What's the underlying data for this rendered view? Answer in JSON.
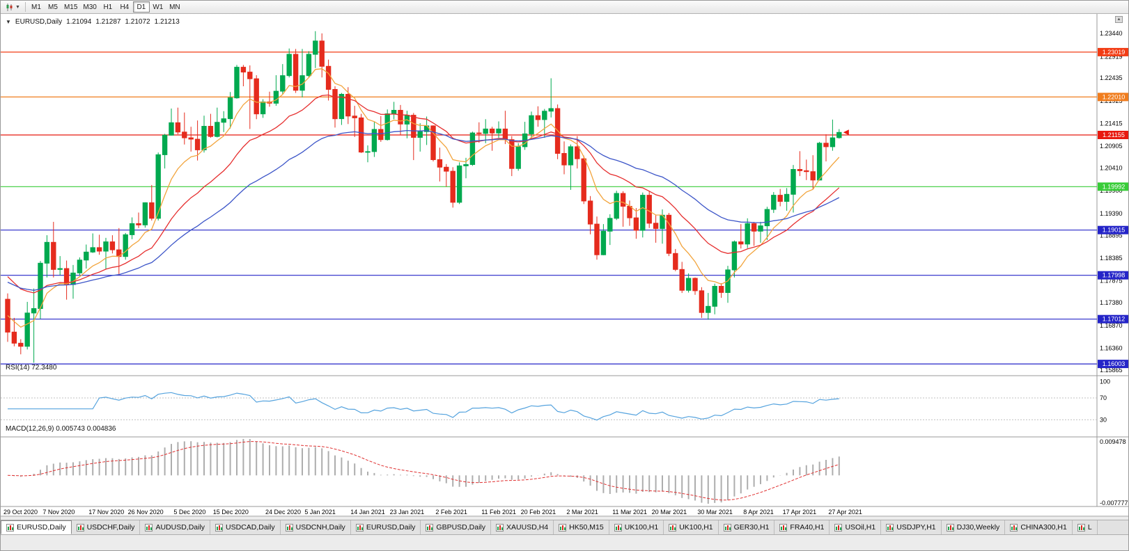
{
  "window": {
    "accent_colors": {
      "bull": "#00A94F",
      "bear": "#E52B1D"
    }
  },
  "toolbar": {
    "timeframes": [
      "M1",
      "M5",
      "M15",
      "M30",
      "H1",
      "H4",
      "D1",
      "W1",
      "MN"
    ],
    "active_timeframe": "D1"
  },
  "chart": {
    "title": {
      "symbol_period": "EURUSD,Daily",
      "open": "1.21094",
      "high": "1.21287",
      "low": "1.21072",
      "close": "1.21213"
    },
    "price_axis_labels": [
      "1.23440",
      "1.22919",
      "1.22435",
      "1.21925",
      "1.21415",
      "1.20905",
      "1.20410",
      "1.19900",
      "1.19390",
      "1.18895",
      "1.18385",
      "1.17875",
      "1.17380",
      "1.16870",
      "1.16360",
      "1.15865"
    ],
    "hlines": [
      {
        "label": "1.23019",
        "price": 1.23019,
        "color": "#F23C14"
      },
      {
        "label": "1.22010",
        "price": 1.2201,
        "color": "#F07D1E"
      },
      {
        "label": "1.21155",
        "price": 1.21155,
        "color": "#E8190F"
      },
      {
        "label": "1.19992",
        "price": 1.19992,
        "color": "#38CC38"
      },
      {
        "label": "1.19015",
        "price": 1.19015,
        "color": "#2424C8"
      },
      {
        "label": "1.17998",
        "price": 1.17998,
        "color": "#2424C8"
      },
      {
        "label": "1.17012",
        "price": 1.17012,
        "color": "#2424C8"
      },
      {
        "label": "1.16003",
        "price": 1.16003,
        "color": "#2424C8"
      }
    ]
  },
  "rsi_pane": {
    "label": "RSI(14) 72.3480",
    "period": 14,
    "current_value": 72.348,
    "levels": [
      70,
      30
    ],
    "axis_labels": [
      "100",
      "70",
      "30"
    ],
    "line_color": "#55A3DE"
  },
  "macd_pane": {
    "label": "MACD(12,26,9) 0.005743 0.004836",
    "macd_value": 0.005743,
    "signal_value": 0.004836,
    "axis_labels": [
      "0.009478",
      "-0.007777"
    ],
    "histogram_color": "#ADADAD",
    "signal_color": "#E03030"
  },
  "x_axis_labels": [
    "29 Oct 2020",
    "7 Nov 2020",
    "17 Nov 2020",
    "26 Nov 2020",
    "5 Dec 2020",
    "15 Dec 2020",
    "24 Dec 2020",
    "5 Jan 2021",
    "14 Jan 2021",
    "23 Jan 2021",
    "2 Feb 2021",
    "11 Feb 2021",
    "20 Feb 2021",
    "2 Mar 2021",
    "11 Mar 2021",
    "20 Mar 2021",
    "30 Mar 2021",
    "8 Apr 2021",
    "17 Apr 2021",
    "27 Apr 2021"
  ],
  "tabs": [
    {
      "label": "EURUSD,Daily",
      "active": true
    },
    {
      "label": "USDCHF,Daily"
    },
    {
      "label": "AUDUSD,Daily"
    },
    {
      "label": "USDCAD,Daily"
    },
    {
      "label": "USDCNH,Daily"
    },
    {
      "label": "EURUSD,Daily"
    },
    {
      "label": "GBPUSD,Daily"
    },
    {
      "label": "XAUUSD,H4"
    },
    {
      "label": "HK50,M15"
    },
    {
      "label": "UK100,H1"
    },
    {
      "label": "UK100,H1"
    },
    {
      "label": "GER30,H1"
    },
    {
      "label": "FRA40,H1"
    },
    {
      "label": "USOil,H1"
    },
    {
      "label": "USDJPY,H1"
    },
    {
      "label": "DJ30,Weekly"
    },
    {
      "label": "CHINA300,H1"
    },
    {
      "label": "L",
      "partial": true
    }
  ],
  "chart_data": {
    "type": "candlestick",
    "symbol": "EURUSD",
    "period": "Daily",
    "last_ohlc": {
      "open": 1.21094,
      "high": 1.21287,
      "low": 1.21072,
      "close": 1.21213
    },
    "price_range": [
      1.1577,
      1.237
    ],
    "horizontal_levels": [
      1.23019,
      1.2201,
      1.21155,
      1.19992,
      1.19015,
      1.17998,
      1.17012,
      1.16003
    ],
    "x_label_indices": [
      0,
      6,
      13,
      19,
      26,
      32,
      40,
      46,
      53,
      59,
      66,
      73,
      79,
      86,
      93,
      99,
      106,
      113,
      119,
      126
    ],
    "moving_averages": [
      {
        "period": 8,
        "color": "#F2A43C",
        "start": 1.172
      },
      {
        "period": 20,
        "color": "#E62E2E",
        "start": 1.181
      },
      {
        "period": 40,
        "color": "#3C55C8",
        "start": 1.179
      }
    ],
    "indicators": [
      {
        "name": "RSI",
        "params": [
          14
        ],
        "current": 72.348,
        "levels": [
          70,
          30
        ]
      },
      {
        "name": "MACD",
        "params": [
          12,
          26,
          9
        ],
        "current": [
          0.005743,
          0.004836
        ],
        "axis_range": [
          0.009478,
          -0.007777
        ]
      }
    ],
    "candles": [
      [
        1.1746,
        1.1759,
        1.165,
        1.1672
      ],
      [
        1.1672,
        1.1704,
        1.164,
        1.1647
      ],
      [
        1.1647,
        1.1656,
        1.1622,
        1.164
      ],
      [
        1.164,
        1.174,
        1.1633,
        1.1715
      ],
      [
        1.1715,
        1.177,
        1.1603,
        1.1725
      ],
      [
        1.1725,
        1.1832,
        1.1702,
        1.1827
      ],
      [
        1.1827,
        1.189,
        1.1795,
        1.1874
      ],
      [
        1.1874,
        1.192,
        1.1795,
        1.1813
      ],
      [
        1.1813,
        1.1843,
        1.18,
        1.1815
      ],
      [
        1.1815,
        1.1833,
        1.1745,
        1.1779
      ],
      [
        1.1779,
        1.1823,
        1.1747,
        1.1805
      ],
      [
        1.1805,
        1.184,
        1.1799,
        1.1834
      ],
      [
        1.1834,
        1.1869,
        1.1815,
        1.1852
      ],
      [
        1.1852,
        1.1894,
        1.185,
        1.1862
      ],
      [
        1.1862,
        1.1891,
        1.1846,
        1.1854
      ],
      [
        1.1854,
        1.1884,
        1.1813,
        1.1875
      ],
      [
        1.1875,
        1.189,
        1.1849,
        1.1857
      ],
      [
        1.1857,
        1.1906,
        1.18,
        1.1842
      ],
      [
        1.1842,
        1.1895,
        1.1835,
        1.1891
      ],
      [
        1.1891,
        1.193,
        1.1881,
        1.1916
      ],
      [
        1.1916,
        1.1941,
        1.1906,
        1.1913
      ],
      [
        1.1913,
        1.1964,
        1.1907,
        1.1963
      ],
      [
        1.1963,
        1.2003,
        1.1923,
        1.1928
      ],
      [
        1.1928,
        1.2076,
        1.1923,
        1.2071
      ],
      [
        1.2071,
        1.2118,
        1.204,
        1.2115
      ],
      [
        1.2115,
        1.2175,
        1.2114,
        1.2143
      ],
      [
        1.2143,
        1.2177,
        1.2117,
        1.2122
      ],
      [
        1.2122,
        1.2166,
        1.2094,
        1.2109
      ],
      [
        1.2109,
        1.2134,
        1.2078,
        1.2106
      ],
      [
        1.2106,
        1.2148,
        1.2058,
        1.2082
      ],
      [
        1.2082,
        1.2159,
        1.2076,
        1.2135
      ],
      [
        1.2135,
        1.2163,
        1.2109,
        1.2112
      ],
      [
        1.2112,
        1.2177,
        1.211,
        1.2144
      ],
      [
        1.2144,
        1.2169,
        1.2122,
        1.2152
      ],
      [
        1.2152,
        1.2212,
        1.213,
        1.2199
      ],
      [
        1.2199,
        1.2273,
        1.2197,
        1.2268
      ],
      [
        1.2268,
        1.2273,
        1.2225,
        1.2257
      ],
      [
        1.2257,
        1.2272,
        1.2129,
        1.2242
      ],
      [
        1.2242,
        1.225,
        1.2151,
        1.2163
      ],
      [
        1.2163,
        1.2196,
        1.2154,
        1.219
      ],
      [
        1.219,
        1.2213,
        1.2179,
        1.2187
      ],
      [
        1.2187,
        1.225,
        1.2181,
        1.2214
      ],
      [
        1.2214,
        1.2275,
        1.2208,
        1.2249
      ],
      [
        1.2249,
        1.231,
        1.2245,
        1.2297
      ],
      [
        1.2297,
        1.2309,
        1.221,
        1.2216
      ],
      [
        1.2216,
        1.2309,
        1.22,
        1.2249
      ],
      [
        1.2249,
        1.2304,
        1.2245,
        1.2297
      ],
      [
        1.2297,
        1.2349,
        1.2266,
        1.2327
      ],
      [
        1.2327,
        1.2344,
        1.2245,
        1.227
      ],
      [
        1.227,
        1.2285,
        1.2193,
        1.2218
      ],
      [
        1.2218,
        1.2225,
        1.2132,
        1.2152
      ],
      [
        1.2152,
        1.221,
        1.2138,
        1.2207
      ],
      [
        1.2207,
        1.2223,
        1.214,
        1.2158
      ],
      [
        1.2158,
        1.2181,
        1.2111,
        1.2154
      ],
      [
        1.2154,
        1.2163,
        1.2075,
        1.2077
      ],
      [
        1.2077,
        1.2092,
        1.2054,
        1.2078
      ],
      [
        1.2078,
        1.2145,
        1.2066,
        1.2128
      ],
      [
        1.2128,
        1.2158,
        1.21,
        1.2105
      ],
      [
        1.2105,
        1.2173,
        1.2103,
        1.2163
      ],
      [
        1.2163,
        1.219,
        1.2151,
        1.2171
      ],
      [
        1.2171,
        1.2183,
        1.2116,
        1.214
      ],
      [
        1.214,
        1.217,
        1.2108,
        1.216
      ],
      [
        1.216,
        1.2165,
        1.2059,
        1.211
      ],
      [
        1.211,
        1.2142,
        1.2078,
        1.2123
      ],
      [
        1.2123,
        1.2157,
        1.2093,
        1.2136
      ],
      [
        1.2136,
        1.2137,
        1.2056,
        1.206
      ],
      [
        1.206,
        1.2087,
        1.2011,
        1.2043
      ],
      [
        1.2043,
        1.205,
        1.1999,
        1.2034
      ],
      [
        1.2034,
        1.2043,
        1.1952,
        1.1964
      ],
      [
        1.1964,
        1.2054,
        1.196,
        1.2046
      ],
      [
        1.2046,
        1.2064,
        1.2018,
        1.2049
      ],
      [
        1.2049,
        1.2123,
        1.2046,
        1.212
      ],
      [
        1.212,
        1.2144,
        1.2098,
        1.2119
      ],
      [
        1.2119,
        1.2151,
        1.2097,
        1.2129
      ],
      [
        1.2129,
        1.2134,
        1.208,
        1.212
      ],
      [
        1.212,
        1.2146,
        1.2109,
        1.2129
      ],
      [
        1.2129,
        1.217,
        1.2095,
        1.2105
      ],
      [
        1.2105,
        1.2113,
        1.2023,
        1.204
      ],
      [
        1.204,
        1.2097,
        1.2035,
        1.2089
      ],
      [
        1.2089,
        1.2145,
        1.2082,
        1.2118
      ],
      [
        1.2118,
        1.2168,
        1.2105,
        1.2159
      ],
      [
        1.2159,
        1.218,
        1.2134,
        1.215
      ],
      [
        1.215,
        1.2174,
        1.2109,
        1.2169
      ],
      [
        1.2169,
        1.2243,
        1.2155,
        1.2175
      ],
      [
        1.2175,
        1.2184,
        1.2061,
        1.2074
      ],
      [
        1.2074,
        1.2101,
        1.2027,
        1.2048
      ],
      [
        1.2048,
        1.2094,
        1.1992,
        1.2089
      ],
      [
        1.2089,
        1.2113,
        1.204,
        1.2062
      ],
      [
        1.2062,
        1.2069,
        1.196,
        1.1967
      ],
      [
        1.1967,
        1.1978,
        1.1892,
        1.1915
      ],
      [
        1.1915,
        1.1932,
        1.1835,
        1.1846
      ],
      [
        1.1846,
        1.1915,
        1.1845,
        1.1899
      ],
      [
        1.1899,
        1.1937,
        1.1868,
        1.1928
      ],
      [
        1.1928,
        1.199,
        1.1924,
        1.1984
      ],
      [
        1.1984,
        1.1989,
        1.1909,
        1.1955
      ],
      [
        1.1955,
        1.1968,
        1.1911,
        1.1929
      ],
      [
        1.1929,
        1.1951,
        1.1882,
        1.1901
      ],
      [
        1.1901,
        1.1986,
        1.1885,
        1.198
      ],
      [
        1.198,
        1.1989,
        1.1906,
        1.1917
      ],
      [
        1.1917,
        1.1935,
        1.1873,
        1.1905
      ],
      [
        1.1905,
        1.1948,
        1.1871,
        1.1935
      ],
      [
        1.1935,
        1.194,
        1.1843,
        1.1849
      ],
      [
        1.1849,
        1.1859,
        1.1809,
        1.1813
      ],
      [
        1.1813,
        1.183,
        1.176,
        1.1766
      ],
      [
        1.1766,
        1.1804,
        1.1761,
        1.1793
      ],
      [
        1.1793,
        1.1795,
        1.1756,
        1.1765
      ],
      [
        1.1765,
        1.1773,
        1.1704,
        1.1716
      ],
      [
        1.1716,
        1.176,
        1.17,
        1.173
      ],
      [
        1.173,
        1.1781,
        1.1712,
        1.1775
      ],
      [
        1.1775,
        1.1782,
        1.1749,
        1.1761
      ],
      [
        1.1761,
        1.1821,
        1.1738,
        1.1812
      ],
      [
        1.1812,
        1.1878,
        1.1795,
        1.1875
      ],
      [
        1.1875,
        1.1915,
        1.186,
        1.187
      ],
      [
        1.187,
        1.1928,
        1.1861,
        1.1916
      ],
      [
        1.1916,
        1.192,
        1.1866,
        1.1899
      ],
      [
        1.1899,
        1.192,
        1.1873,
        1.1911
      ],
      [
        1.1911,
        1.1954,
        1.1879,
        1.1948
      ],
      [
        1.1948,
        1.1987,
        1.194,
        1.198
      ],
      [
        1.198,
        1.1994,
        1.1955,
        1.1966
      ],
      [
        1.1966,
        1.1996,
        1.1945,
        1.1982
      ],
      [
        1.1982,
        1.2048,
        1.1941,
        1.2038
      ],
      [
        1.2038,
        1.2079,
        1.2023,
        1.2035
      ],
      [
        1.2035,
        1.206,
        1.2014,
        1.2033
      ],
      [
        1.2033,
        1.207,
        1.1994,
        1.2014
      ],
      [
        1.2014,
        1.21,
        1.2013,
        1.2097
      ],
      [
        1.2097,
        1.2117,
        1.2056,
        1.2089
      ],
      [
        1.2089,
        1.215,
        1.208,
        1.2109
      ],
      [
        1.21094,
        1.21287,
        1.21072,
        1.21213
      ]
    ]
  }
}
